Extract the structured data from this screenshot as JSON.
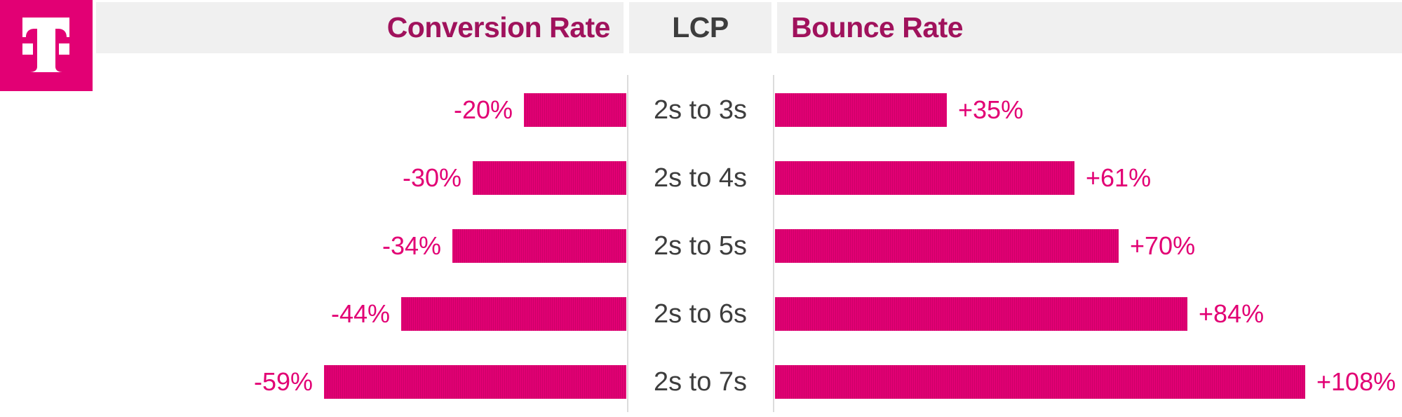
{
  "brand": {
    "logo": "telekom-t-logo",
    "magenta": "#e20074"
  },
  "header": {
    "left": "Conversion Rate",
    "center": "LCP",
    "right": "Bounce Rate",
    "band_color": "#f0f0f0",
    "title_color": "#a0125c",
    "center_title_color": "#3d3d3d"
  },
  "rows": [
    {
      "lcp": "2s to 3s",
      "conversion": "-20%",
      "bounce": "+35%"
    },
    {
      "lcp": "2s to 4s",
      "conversion": "-30%",
      "bounce": "+61%"
    },
    {
      "lcp": "2s to 5s",
      "conversion": "-34%",
      "bounce": "+70%"
    },
    {
      "lcp": "2s to 6s",
      "conversion": "-44%",
      "bounce": "+84%"
    },
    {
      "lcp": "2s to 7s",
      "conversion": "-59%",
      "bounce": "+108%"
    }
  ],
  "chart_data": {
    "type": "bar",
    "orientation": "horizontal-diverging",
    "title": "",
    "center_axis_label": "LCP",
    "categories": [
      "2s to 3s",
      "2s to 4s",
      "2s to 5s",
      "2s to 6s",
      "2s to 7s"
    ],
    "series": [
      {
        "name": "Conversion Rate",
        "side": "left",
        "values": [
          -20,
          -30,
          -34,
          -44,
          -59
        ],
        "labels": [
          "-20%",
          "-30%",
          "-34%",
          "-44%",
          "-59%"
        ]
      },
      {
        "name": "Bounce Rate",
        "side": "right",
        "values": [
          35,
          61,
          70,
          84,
          108
        ],
        "labels": [
          "+35%",
          "+61%",
          "+70%",
          "+84%",
          "+108%"
        ]
      }
    ],
    "bar_color": "#e20074",
    "bar_stripe_color": "#cc0068",
    "value_label_color": "#e20074",
    "grid": false,
    "legend_position": "header-row"
  }
}
